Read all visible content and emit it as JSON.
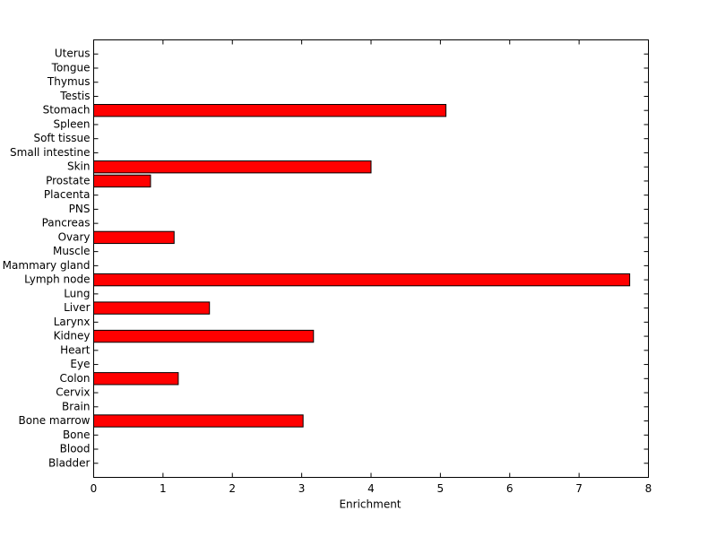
{
  "chart_data": {
    "type": "barh",
    "xlabel": "Enrichment",
    "categories": [
      "Bladder",
      "Blood",
      "Bone",
      "Bone marrow",
      "Brain",
      "Cervix",
      "Colon",
      "Eye",
      "Heart",
      "Kidney",
      "Larynx",
      "Liver",
      "Lung",
      "Lymph node",
      "Mammary gland",
      "Muscle",
      "Ovary",
      "Pancreas",
      "PNS",
      "Placenta",
      "Prostate",
      "Skin",
      "Small intestine",
      "Soft tissue",
      "Spleen",
      "Stomach",
      "Testis",
      "Thymus",
      "Tongue",
      "Uterus"
    ],
    "values": [
      0,
      0,
      0,
      3.02,
      0,
      0,
      1.22,
      0,
      0,
      3.17,
      0,
      1.67,
      0,
      7.73,
      0,
      0,
      1.16,
      0,
      0,
      0,
      0.82,
      4.0,
      0,
      0,
      0,
      5.08,
      0,
      0,
      0,
      0
    ],
    "color": "#ff0000",
    "xlim": [
      0,
      8
    ],
    "xticks": [
      0,
      1,
      2,
      3,
      4,
      5,
      6,
      7,
      8
    ]
  }
}
